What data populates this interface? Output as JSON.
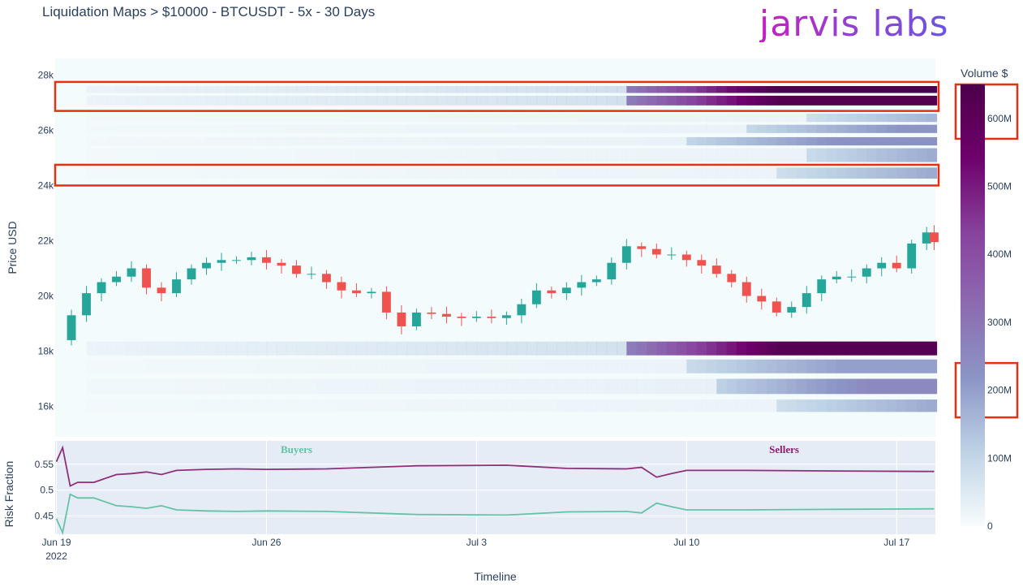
{
  "header": {
    "title": "Liquidation Maps > $10000 - BTCUSDT - 5x - 30 Days",
    "logo_text": "jarvis labs"
  },
  "chart_data": [
    {
      "type": "heatmap",
      "panel": "liquidation-map",
      "ylabel": "Price USD",
      "ylim": [
        14900,
        28600
      ],
      "y_ticks": [
        16000,
        18000,
        20000,
        22000,
        24000,
        26000,
        28000
      ],
      "y_tick_labels": [
        "16k",
        "18k",
        "20k",
        "22k",
        "24k",
        "26k",
        "28k"
      ],
      "x_ticks": [
        "2022-06-19",
        "2022-06-26",
        "2022-07-03",
        "2022-07-10",
        "2022-07-17"
      ],
      "x_tick_labels": [
        "Jun 19",
        "Jun 26",
        "Jul 3",
        "Jul 10",
        "Jul 17"
      ],
      "x_year_label": "2022",
      "xlabel": "Timeline",
      "xlim": [
        "2022-06-18T23:00",
        "2022-07-18T07:00"
      ],
      "colorbar": {
        "title": "Volume $",
        "range": [
          0,
          650000000
        ],
        "ticks": [
          0,
          100000000,
          200000000,
          300000000,
          400000000,
          500000000,
          600000000
        ],
        "tick_labels": [
          "0",
          "100M",
          "200M",
          "300M",
          "400M",
          "500M",
          "600M"
        ],
        "colors": [
          "#f7fcfd",
          "#bfd3e6",
          "#8c96c6",
          "#8c6bb1",
          "#88419d",
          "#6e016b",
          "#4d004b"
        ]
      },
      "bands": [
        {
          "start": "2022-06-20",
          "from": 27350,
          "to": 27600,
          "peak_value": 650000000,
          "ramp_day": "2022-07-08"
        },
        {
          "start": "2022-06-20",
          "from": 26900,
          "to": 27250,
          "peak_value": 630000000,
          "ramp_day": "2022-07-08"
        },
        {
          "start": "2022-06-20",
          "from": 26300,
          "to": 26600,
          "peak_value": 180000000,
          "ramp_day": "2022-07-14"
        },
        {
          "start": "2022-06-20",
          "from": 25900,
          "to": 26200,
          "peak_value": 220000000,
          "ramp_day": "2022-07-12"
        },
        {
          "start": "2022-06-20",
          "from": 25450,
          "to": 25750,
          "peak_value": 230000000,
          "ramp_day": "2022-07-10"
        },
        {
          "start": "2022-06-20",
          "from": 24850,
          "to": 25350,
          "peak_value": 200000000,
          "ramp_day": "2022-07-14"
        },
        {
          "start": "2022-06-20",
          "from": 24250,
          "to": 24650,
          "peak_value": 180000000,
          "ramp_day": "2022-07-13"
        },
        {
          "start": "2022-06-20",
          "from": 17850,
          "to": 18350,
          "peak_value": 620000000,
          "ramp_day": "2022-07-08"
        },
        {
          "start": "2022-06-20",
          "from": 17200,
          "to": 17700,
          "peak_value": 200000000,
          "ramp_day": "2022-07-10"
        },
        {
          "start": "2022-06-20",
          "from": 16450,
          "to": 17000,
          "peak_value": 250000000,
          "ramp_day": "2022-07-11"
        },
        {
          "start": "2022-06-20",
          "from": 15800,
          "to": 16250,
          "peak_value": 180000000,
          "ramp_day": "2022-07-13"
        }
      ],
      "highlights": [
        {
          "type": "price-range",
          "from": 26700,
          "to": 27750
        },
        {
          "type": "price-range",
          "from": 24000,
          "to": 24750
        },
        {
          "type": "colorbar-range",
          "from": 570000000,
          "to": 650000000
        },
        {
          "type": "colorbar-range",
          "from": 160000000,
          "to": 240000000
        }
      ]
    },
    {
      "type": "candlestick",
      "panel": "price",
      "ohlc_interval_hours": 12,
      "up_color": "#26a69a",
      "down_color": "#ef5350",
      "close_path": [
        [
          "2022-06-19T00:00",
          18400
        ],
        [
          "2022-06-19T12:00",
          19300
        ],
        [
          "2022-06-20T00:00",
          20100
        ],
        [
          "2022-06-20T12:00",
          20500
        ],
        [
          "2022-06-21T00:00",
          20700
        ],
        [
          "2022-06-21T12:00",
          21000
        ],
        [
          "2022-06-22T00:00",
          20300
        ],
        [
          "2022-06-22T12:00",
          20100
        ],
        [
          "2022-06-23T00:00",
          20600
        ],
        [
          "2022-06-23T12:00",
          21000
        ],
        [
          "2022-06-24T00:00",
          21200
        ],
        [
          "2022-06-24T12:00",
          21300
        ],
        [
          "2022-06-25T00:00",
          21300
        ],
        [
          "2022-06-25T12:00",
          21400
        ],
        [
          "2022-06-26T00:00",
          21200
        ],
        [
          "2022-06-26T12:00",
          21100
        ],
        [
          "2022-06-27T00:00",
          20800
        ],
        [
          "2022-06-27T12:00",
          20800
        ],
        [
          "2022-06-28T00:00",
          20500
        ],
        [
          "2022-06-28T12:00",
          20200
        ],
        [
          "2022-06-29T00:00",
          20100
        ],
        [
          "2022-06-29T12:00",
          20150
        ],
        [
          "2022-06-30T00:00",
          19400
        ],
        [
          "2022-06-30T12:00",
          18900
        ],
        [
          "2022-07-01T00:00",
          19400
        ],
        [
          "2022-07-01T12:00",
          19350
        ],
        [
          "2022-07-02T00:00",
          19250
        ],
        [
          "2022-07-02T12:00",
          19200
        ],
        [
          "2022-07-03T00:00",
          19250
        ],
        [
          "2022-07-03T12:00",
          19200
        ],
        [
          "2022-07-04T00:00",
          19300
        ],
        [
          "2022-07-04T12:00",
          19700
        ],
        [
          "2022-07-05T00:00",
          20200
        ],
        [
          "2022-07-05T12:00",
          20100
        ],
        [
          "2022-07-06T00:00",
          20300
        ],
        [
          "2022-07-06T12:00",
          20500
        ],
        [
          "2022-07-07T00:00",
          20600
        ],
        [
          "2022-07-07T12:00",
          21200
        ],
        [
          "2022-07-08T00:00",
          21800
        ],
        [
          "2022-07-08T12:00",
          21700
        ],
        [
          "2022-07-09T00:00",
          21500
        ],
        [
          "2022-07-09T12:00",
          21500
        ],
        [
          "2022-07-10T00:00",
          21300
        ],
        [
          "2022-07-10T12:00",
          21100
        ],
        [
          "2022-07-11T00:00",
          20800
        ],
        [
          "2022-07-11T12:00",
          20500
        ],
        [
          "2022-07-12T00:00",
          20000
        ],
        [
          "2022-07-12T12:00",
          19800
        ],
        [
          "2022-07-13T00:00",
          19400
        ],
        [
          "2022-07-13T12:00",
          19600
        ],
        [
          "2022-07-14T00:00",
          20100
        ],
        [
          "2022-07-14T12:00",
          20600
        ],
        [
          "2022-07-15T00:00",
          20700
        ],
        [
          "2022-07-15T12:00",
          20700
        ],
        [
          "2022-07-16T00:00",
          21000
        ],
        [
          "2022-07-16T12:00",
          21200
        ],
        [
          "2022-07-17T00:00",
          21000
        ],
        [
          "2022-07-17T12:00",
          21900
        ],
        [
          "2022-07-18T00:00",
          22300
        ],
        [
          "2022-07-18T06:00",
          21950
        ]
      ]
    },
    {
      "type": "line",
      "panel": "risk-fraction",
      "ylabel": "Risk Fraction",
      "ylim": [
        0.415,
        0.595
      ],
      "y_ticks": [
        0.45,
        0.5,
        0.55
      ],
      "y_tick_labels": [
        "0.45",
        "0.5",
        "0.55"
      ],
      "annotations": [
        {
          "text": "Buyers",
          "x": "2022-06-27T00:00",
          "color": "#66c2a5"
        },
        {
          "text": "Sellers",
          "x": "2022-07-13T06:00",
          "color": "#8e1d6f"
        }
      ],
      "series": [
        {
          "name": "Sellers",
          "color": "#8e2f7a",
          "points": [
            [
              "2022-06-19T00:00",
              0.555
            ],
            [
              "2022-06-19T05:00",
              0.582
            ],
            [
              "2022-06-19T11:00",
              0.508
            ],
            [
              "2022-06-19T17:00",
              0.515
            ],
            [
              "2022-06-20T06:00",
              0.515
            ],
            [
              "2022-06-21T00:00",
              0.53
            ],
            [
              "2022-06-21T12:00",
              0.532
            ],
            [
              "2022-06-22T00:00",
              0.535
            ],
            [
              "2022-06-22T12:00",
              0.53
            ],
            [
              "2022-06-23T00:00",
              0.538
            ],
            [
              "2022-06-24T00:00",
              0.54
            ],
            [
              "2022-06-25T00:00",
              0.541
            ],
            [
              "2022-06-26T00:00",
              0.54
            ],
            [
              "2022-06-28T00:00",
              0.541
            ],
            [
              "2022-07-01T00:00",
              0.547
            ],
            [
              "2022-07-04T00:00",
              0.548
            ],
            [
              "2022-07-06T00:00",
              0.542
            ],
            [
              "2022-07-08T00:00",
              0.541
            ],
            [
              "2022-07-08T12:00",
              0.544
            ],
            [
              "2022-07-09T00:00",
              0.525
            ],
            [
              "2022-07-09T12:00",
              0.532
            ],
            [
              "2022-07-10T00:00",
              0.538
            ],
            [
              "2022-07-12T00:00",
              0.538
            ],
            [
              "2022-07-15T00:00",
              0.537
            ],
            [
              "2022-07-18T06:00",
              0.536
            ]
          ]
        },
        {
          "name": "Buyers",
          "color": "#66c2a5",
          "points": [
            [
              "2022-06-19T00:00",
              0.445
            ],
            [
              "2022-06-19T05:00",
              0.418
            ],
            [
              "2022-06-19T11:00",
              0.492
            ],
            [
              "2022-06-19T17:00",
              0.485
            ],
            [
              "2022-06-20T06:00",
              0.485
            ],
            [
              "2022-06-21T00:00",
              0.47
            ],
            [
              "2022-06-21T12:00",
              0.468
            ],
            [
              "2022-06-22T00:00",
              0.465
            ],
            [
              "2022-06-22T12:00",
              0.47
            ],
            [
              "2022-06-23T00:00",
              0.462
            ],
            [
              "2022-06-24T00:00",
              0.46
            ],
            [
              "2022-06-25T00:00",
              0.459
            ],
            [
              "2022-06-26T00:00",
              0.46
            ],
            [
              "2022-06-28T00:00",
              0.459
            ],
            [
              "2022-07-01T00:00",
              0.453
            ],
            [
              "2022-07-04T00:00",
              0.452
            ],
            [
              "2022-07-06T00:00",
              0.458
            ],
            [
              "2022-07-08T00:00",
              0.459
            ],
            [
              "2022-07-08T12:00",
              0.456
            ],
            [
              "2022-07-09T00:00",
              0.475
            ],
            [
              "2022-07-09T12:00",
              0.468
            ],
            [
              "2022-07-10T00:00",
              0.462
            ],
            [
              "2022-07-12T00:00",
              0.462
            ],
            [
              "2022-07-15T00:00",
              0.463
            ],
            [
              "2022-07-18T06:00",
              0.464
            ]
          ]
        }
      ]
    }
  ]
}
